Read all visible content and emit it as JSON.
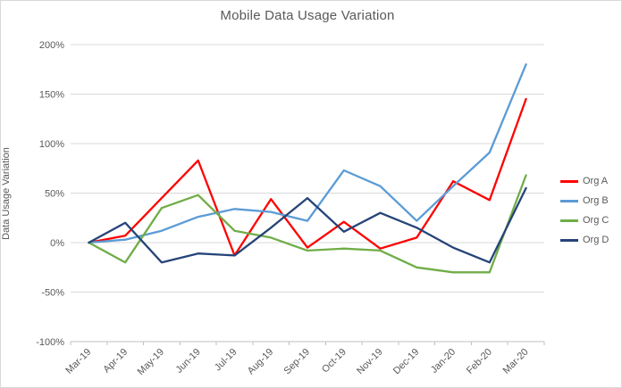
{
  "chart_data": {
    "type": "line",
    "title": "Mobile Data Usage Variation",
    "xlabel": "",
    "ylabel": "Data Usage Variation",
    "categories": [
      "Mar-19",
      "Apr-19",
      "May-19",
      "Jun-19",
      "Jul-19",
      "Aug-19",
      "Sep-19",
      "Oct-19",
      "Nov-19",
      "Dec-19",
      "Jan-20",
      "Feb-20",
      "Mar-20"
    ],
    "y_ticks": [
      "200%",
      "150%",
      "100%",
      "50%",
      "0%",
      "-50%",
      "-100%"
    ],
    "ylim": [
      -100,
      200
    ],
    "grid": true,
    "legend_position": "right",
    "series": [
      {
        "name": "Org A",
        "color": "#FF0000",
        "values": [
          0,
          7,
          45,
          83,
          -13,
          44,
          -5,
          21,
          -6,
          5,
          62,
          43,
          145
        ]
      },
      {
        "name": "Org B",
        "color": "#5B9BD5",
        "values": [
          0,
          3,
          12,
          26,
          34,
          31,
          22,
          73,
          57,
          22,
          57,
          91,
          180
        ]
      },
      {
        "name": "Org C",
        "color": "#70AD47",
        "values": [
          0,
          -20,
          35,
          48,
          12,
          5,
          -8,
          -6,
          -8,
          -25,
          -30,
          -30,
          68
        ]
      },
      {
        "name": "Org D",
        "color": "#264478",
        "values": [
          0,
          20,
          -20,
          -11,
          -13,
          15,
          45,
          11,
          30,
          15,
          -5,
          -20,
          55
        ]
      }
    ],
    "colors": {
      "gridline": "#D9D9D9",
      "axis": "#BFBFBF",
      "text": "#595959"
    }
  }
}
